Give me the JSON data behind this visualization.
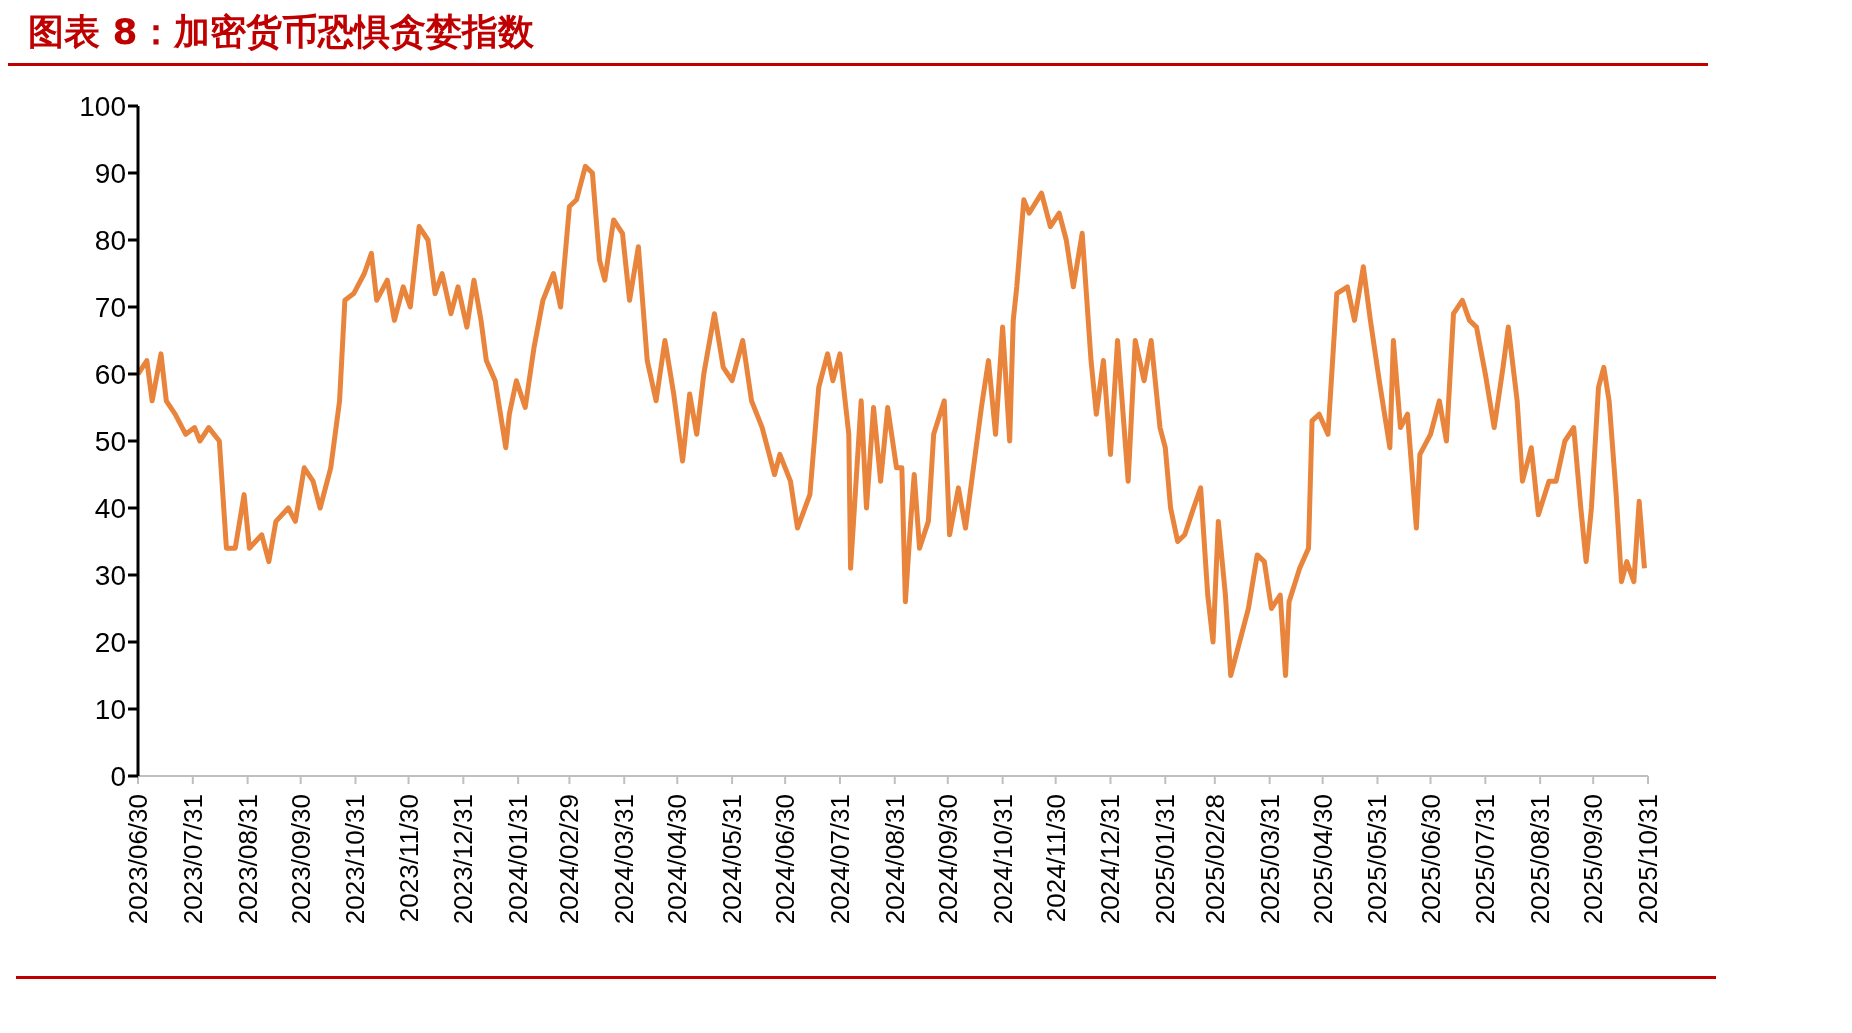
{
  "chart_data": {
    "type": "line",
    "title": "图表 8：加密货币恐惧贪婪指数",
    "x": [
      "2023-06-30",
      "2023-07-05",
      "2023-07-08",
      "2023-07-13",
      "2023-07-16",
      "2023-07-21",
      "2023-07-27",
      "2023-08-01",
      "2023-08-04",
      "2023-08-09",
      "2023-08-15",
      "2023-08-19",
      "2023-08-24",
      "2023-08-29",
      "2023-09-01",
      "2023-09-08",
      "2023-09-12",
      "2023-09-16",
      "2023-09-23",
      "2023-09-27",
      "2023-10-02",
      "2023-10-07",
      "2023-10-11",
      "2023-10-17",
      "2023-10-22",
      "2023-10-25",
      "2023-10-30",
      "2023-11-05",
      "2023-11-09",
      "2023-11-12",
      "2023-11-18",
      "2023-11-22",
      "2023-11-27",
      "2023-12-01",
      "2023-12-06",
      "2023-12-11",
      "2023-12-15",
      "2023-12-19",
      "2023-12-24",
      "2023-12-28",
      "2024-01-02",
      "2024-01-06",
      "2024-01-10",
      "2024-01-13",
      "2024-01-18",
      "2024-01-24",
      "2024-01-26",
      "2024-01-30",
      "2024-02-04",
      "2024-02-09",
      "2024-02-14",
      "2024-02-20",
      "2024-02-24",
      "2024-02-29",
      "2024-03-04",
      "2024-03-09",
      "2024-03-13",
      "2024-03-17",
      "2024-03-20",
      "2024-03-25",
      "2024-03-30",
      "2024-04-03",
      "2024-04-08",
      "2024-04-13",
      "2024-04-18",
      "2024-04-23",
      "2024-04-28",
      "2024-05-03",
      "2024-05-07",
      "2024-05-11",
      "2024-05-15",
      "2024-05-21",
      "2024-05-26",
      "2024-05-31",
      "2024-06-06",
      "2024-06-11",
      "2024-06-17",
      "2024-06-24",
      "2024-06-27",
      "2024-07-03",
      "2024-07-07",
      "2024-07-14",
      "2024-07-19",
      "2024-07-24",
      "2024-07-27",
      "2024-07-31",
      "2024-08-05",
      "2024-08-06",
      "2024-08-12",
      "2024-08-15",
      "2024-08-19",
      "2024-08-23",
      "2024-08-27",
      "2024-09-01",
      "2024-09-04",
      "2024-09-06",
      "2024-09-09",
      "2024-09-11",
      "2024-09-14",
      "2024-09-19",
      "2024-09-22",
      "2024-09-28",
      "2024-10-01",
      "2024-10-06",
      "2024-10-10",
      "2024-10-14",
      "2024-10-19",
      "2024-10-23",
      "2024-10-27",
      "2024-10-31",
      "2024-11-04",
      "2024-11-06",
      "2024-11-08",
      "2024-11-12",
      "2024-11-15",
      "2024-11-22",
      "2024-11-27",
      "2024-12-02",
      "2024-12-06",
      "2024-12-10",
      "2024-12-15",
      "2024-12-20",
      "2024-12-23",
      "2024-12-27",
      "2024-12-31",
      "2025-01-04",
      "2025-01-10",
      "2025-01-14",
      "2025-01-19",
      "2025-01-23",
      "2025-01-28",
      "2025-01-31",
      "2025-02-03",
      "2025-02-07",
      "2025-02-11",
      "2025-02-16",
      "2025-02-20",
      "2025-02-24",
      "2025-02-27",
      "2025-03-02",
      "2025-03-06",
      "2025-03-09",
      "2025-03-14",
      "2025-03-19",
      "2025-03-24",
      "2025-03-28",
      "2025-04-01",
      "2025-04-06",
      "2025-04-09",
      "2025-04-11",
      "2025-04-17",
      "2025-04-22",
      "2025-04-24",
      "2025-04-28",
      "2025-05-03",
      "2025-05-08",
      "2025-05-14",
      "2025-05-18",
      "2025-05-23",
      "2025-05-27",
      "2025-06-01",
      "2025-06-04",
      "2025-06-07",
      "2025-06-09",
      "2025-06-13",
      "2025-06-17",
      "2025-06-22",
      "2025-06-24",
      "2025-06-30",
      "2025-07-05",
      "2025-07-09",
      "2025-07-13",
      "2025-07-18",
      "2025-07-22",
      "2025-07-26",
      "2025-07-31",
      "2025-08-05",
      "2025-08-10",
      "2025-08-13",
      "2025-08-18",
      "2025-08-21",
      "2025-08-26",
      "2025-08-30",
      "2025-09-05",
      "2025-09-09",
      "2025-09-14",
      "2025-09-19",
      "2025-09-23",
      "2025-09-26",
      "2025-09-29",
      "2025-10-03",
      "2025-10-06",
      "2025-10-09",
      "2025-10-13",
      "2025-10-16",
      "2025-10-19",
      "2025-10-23",
      "2025-10-26",
      "2025-10-29"
    ],
    "series": [
      {
        "color": "#e8843c",
        "values": [
          60,
          62,
          56,
          63,
          56,
          54,
          51,
          52,
          50,
          52,
          50,
          34,
          34,
          42,
          34,
          36,
          32,
          38,
          40,
          38,
          46,
          44,
          40,
          46,
          56,
          71,
          72,
          75,
          78,
          71,
          74,
          68,
          73,
          70,
          82,
          80,
          72,
          75,
          69,
          73,
          67,
          74,
          68,
          62,
          59,
          49,
          54,
          59,
          55,
          64,
          71,
          75,
          70,
          85,
          86,
          91,
          90,
          77,
          74,
          83,
          81,
          71,
          79,
          62,
          56,
          65,
          57,
          47,
          57,
          51,
          60,
          69,
          61,
          59,
          65,
          56,
          52,
          45,
          48,
          44,
          37,
          42,
          58,
          63,
          59,
          63,
          51,
          31,
          56,
          40,
          55,
          44,
          55,
          46,
          46,
          26,
          38,
          45,
          34,
          38,
          51,
          56,
          36,
          43,
          37,
          45,
          55,
          62,
          51,
          67,
          50,
          68,
          73,
          86,
          84,
          87,
          82,
          84,
          80,
          73,
          81,
          62,
          54,
          62,
          48,
          65,
          44,
          65,
          59,
          65,
          52,
          49,
          40,
          35,
          36,
          40,
          43,
          27,
          20,
          38,
          27,
          15,
          20,
          25,
          33,
          32,
          25,
          27,
          15,
          26,
          31,
          34,
          53,
          54,
          51,
          72,
          73,
          68,
          76,
          68,
          59,
          54,
          49,
          65,
          52,
          54,
          37,
          48,
          51,
          56,
          50,
          69,
          71,
          68,
          67,
          60,
          52,
          61,
          67,
          56,
          44,
          49,
          39,
          44,
          44,
          50,
          52,
          40,
          32,
          40,
          58,
          61,
          56,
          42,
          29,
          32,
          29,
          41,
          31
        ]
      }
    ],
    "xlim": [
      "2023-06-30",
      "2025-10-31"
    ],
    "xticks": [
      {
        "value": "2023-06-30",
        "label": "2023/06/30"
      },
      {
        "value": "2023-07-31",
        "label": "2023/07/31"
      },
      {
        "value": "2023-08-31",
        "label": "2023/08/31"
      },
      {
        "value": "2023-09-30",
        "label": "2023/09/30"
      },
      {
        "value": "2023-10-31",
        "label": "2023/10/31"
      },
      {
        "value": "2023-11-30",
        "label": "2023/11/30"
      },
      {
        "value": "2023-12-31",
        "label": "2023/12/31"
      },
      {
        "value": "2024-01-31",
        "label": "2024/01/31"
      },
      {
        "value": "2024-02-29",
        "label": "2024/02/29"
      },
      {
        "value": "2024-03-31",
        "label": "2024/03/31"
      },
      {
        "value": "2024-04-30",
        "label": "2024/04/30"
      },
      {
        "value": "2024-05-31",
        "label": "2024/05/31"
      },
      {
        "value": "2024-06-30",
        "label": "2024/06/30"
      },
      {
        "value": "2024-07-31",
        "label": "2024/07/31"
      },
      {
        "value": "2024-08-31",
        "label": "2024/08/31"
      },
      {
        "value": "2024-09-30",
        "label": "2024/09/30"
      },
      {
        "value": "2024-10-31",
        "label": "2024/10/31"
      },
      {
        "value": "2024-11-30",
        "label": "2024/11/30"
      },
      {
        "value": "2024-12-31",
        "label": "2024/12/31"
      },
      {
        "value": "2025-01-31",
        "label": "2025/01/31"
      },
      {
        "value": "2025-02-28",
        "label": "2025/02/28"
      },
      {
        "value": "2025-03-31",
        "label": "2025/03/31"
      },
      {
        "value": "2025-04-30",
        "label": "2025/04/30"
      },
      {
        "value": "2025-05-31",
        "label": "2025/05/31"
      },
      {
        "value": "2025-06-30",
        "label": "2025/06/30"
      },
      {
        "value": "2025-07-31",
        "label": "2025/07/31"
      },
      {
        "value": "2025-08-31",
        "label": "2025/08/31"
      },
      {
        "value": "2025-09-30",
        "label": "2025/09/30"
      },
      {
        "value": "2025-10-31",
        "label": "2025/10/31"
      }
    ],
    "ylim": [
      0,
      100
    ],
    "yticks": [
      0,
      10,
      20,
      30,
      40,
      50,
      60,
      70,
      80,
      90,
      100
    ],
    "grid": false,
    "marker": "none",
    "line_style": "solid"
  }
}
